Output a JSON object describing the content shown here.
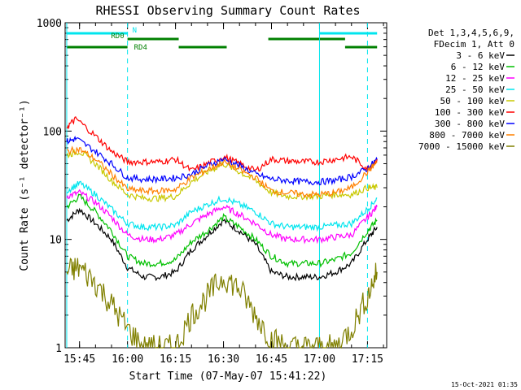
{
  "chart_data": {
    "type": "line",
    "title": "RHESSI Observing Summary Count Rates",
    "xlabel": "Start Time (07-May-07 15:41:22)",
    "ylabel": "Count Rate (s⁻¹ detector⁻¹)",
    "y_scale": "log",
    "ylim": [
      1,
      1000
    ],
    "xlim_minutes": [
      15.7,
      17.3
    ],
    "x_ticks": [
      "15:45",
      "16:00",
      "16:15",
      "16:30",
      "16:45",
      "17:00",
      "17:15"
    ],
    "y_ticks": [
      "1",
      "10",
      "100",
      "1000"
    ],
    "legend_placement": "top-right outside",
    "legend_header": [
      "Det 1,3,4,5,6,9,",
      "FDecim 1, Att 0"
    ],
    "timestamp": "15-Oct-2021 01:35",
    "flags": [
      {
        "name": "N",
        "color": "#00e5ee",
        "segments": [
          [
            "15:41",
            "16:00"
          ],
          [
            "17:00",
            "17:18"
          ]
        ]
      },
      {
        "name": "RD0",
        "color": "#008000",
        "segments": [
          [
            "16:00",
            "16:16"
          ],
          [
            "16:44",
            "17:08"
          ]
        ]
      },
      {
        "name": "RD4",
        "color": "#008000",
        "segments": [
          [
            "15:41",
            "16:00"
          ],
          [
            "16:16",
            "16:31"
          ],
          [
            "17:08",
            "17:18"
          ]
        ]
      }
    ],
    "vlines": [
      {
        "time": "16:00",
        "style": "dashed",
        "color": "#00e5ee"
      },
      {
        "time": "17:00",
        "style": "solid",
        "color": "#00e5ee"
      },
      {
        "time": "17:15",
        "style": "dashed",
        "color": "#00e5ee"
      },
      {
        "time": "15:41",
        "style": "solid",
        "color": "#00e5ee"
      }
    ],
    "series": [
      {
        "name": "3 - 6 keV",
        "color": "#000000",
        "x": [
          "15:41",
          "15:45",
          "15:50",
          "15:55",
          "16:00",
          "16:05",
          "16:10",
          "16:15",
          "16:20",
          "16:25",
          "16:30",
          "16:35",
          "16:40",
          "16:45",
          "16:50",
          "16:55",
          "17:00",
          "17:05",
          "17:10",
          "17:15",
          "17:18"
        ],
        "values": [
          15,
          19,
          14,
          10,
          5.5,
          4.5,
          4.5,
          5,
          8,
          11,
          15,
          12,
          9,
          5,
          4.5,
          4.5,
          4.5,
          5,
          6,
          10,
          13
        ]
      },
      {
        "name": "6 - 12 keV",
        "color": "#00c000",
        "x": [
          "15:41",
          "15:45",
          "15:50",
          "15:55",
          "16:00",
          "16:05",
          "16:10",
          "16:15",
          "16:20",
          "16:25",
          "16:30",
          "16:35",
          "16:40",
          "16:45",
          "16:50",
          "16:55",
          "17:00",
          "17:05",
          "17:10",
          "17:15",
          "17:18"
        ],
        "values": [
          20,
          25,
          18,
          12,
          7,
          6,
          6,
          6.5,
          9.5,
          12,
          16,
          13,
          10,
          7,
          6,
          6,
          6,
          6.5,
          7.5,
          12,
          15
        ]
      },
      {
        "name": "12 - 25 keV",
        "color": "#ff00ff",
        "x": [
          "15:41",
          "15:45",
          "15:50",
          "15:55",
          "16:00",
          "16:05",
          "16:10",
          "16:15",
          "16:20",
          "16:25",
          "16:30",
          "16:35",
          "16:40",
          "16:45",
          "16:50",
          "16:55",
          "17:00",
          "17:05",
          "17:10",
          "17:15",
          "17:18"
        ],
        "values": [
          25,
          27,
          22,
          16,
          11,
          10,
          10,
          11,
          14,
          17,
          20,
          17,
          14,
          11,
          10,
          10,
          10,
          10.5,
          11,
          16,
          20
        ]
      },
      {
        "name": "25 - 50 keV",
        "color": "#00e5ee",
        "x": [
          "15:41",
          "15:45",
          "15:50",
          "15:55",
          "16:00",
          "16:05",
          "16:10",
          "16:15",
          "16:20",
          "16:25",
          "16:30",
          "16:35",
          "16:40",
          "16:45",
          "16:50",
          "16:55",
          "17:00",
          "17:05",
          "17:10",
          "17:15",
          "17:18"
        ],
        "values": [
          28,
          33,
          26,
          19,
          14,
          13,
          13,
          13.5,
          18,
          21,
          24,
          21,
          18,
          14,
          13,
          13,
          13,
          13.5,
          14,
          19,
          24
        ]
      },
      {
        "name": "50 - 100 keV",
        "color": "#c8c800",
        "x": [
          "15:41",
          "15:45",
          "15:50",
          "15:55",
          "16:00",
          "16:05",
          "16:10",
          "16:15",
          "16:20",
          "16:25",
          "16:30",
          "16:35",
          "16:40",
          "16:45",
          "16:50",
          "16:55",
          "17:00",
          "17:05",
          "17:10",
          "17:15",
          "17:18"
        ],
        "values": [
          60,
          65,
          50,
          35,
          26,
          24,
          24,
          25,
          34,
          42,
          50,
          42,
          35,
          27,
          25,
          25,
          25,
          26,
          26,
          30,
          30
        ]
      },
      {
        "name": "100 - 300 keV",
        "color": "#ff0000",
        "x": [
          "15:41",
          "15:44",
          "15:50",
          "15:55",
          "16:00",
          "16:05",
          "16:10",
          "16:15",
          "16:20",
          "16:25",
          "16:30",
          "16:35",
          "16:40",
          "16:45",
          "16:50",
          "16:55",
          "17:00",
          "17:05",
          "17:10",
          "17:15",
          "17:18"
        ],
        "values": [
          110,
          130,
          90,
          65,
          52,
          52,
          52,
          55,
          43,
          50,
          58,
          50,
          43,
          55,
          53,
          52,
          52,
          55,
          58,
          45,
          55
        ]
      },
      {
        "name": "300 - 800 keV",
        "color": "#0000ff",
        "x": [
          "15:41",
          "15:44",
          "15:50",
          "15:55",
          "16:00",
          "16:05",
          "16:10",
          "16:15",
          "16:20",
          "16:25",
          "16:30",
          "16:35",
          "16:40",
          "16:45",
          "16:50",
          "16:55",
          "17:00",
          "17:05",
          "17:10",
          "17:15",
          "17:18"
        ],
        "values": [
          80,
          85,
          65,
          50,
          37,
          36,
          36,
          37,
          40,
          48,
          55,
          48,
          40,
          36,
          35,
          34,
          34,
          35,
          38,
          45,
          55
        ]
      },
      {
        "name": "800 - 7000 keV",
        "color": "#ff8000",
        "x": [
          "15:41",
          "15:45",
          "15:50",
          "15:55",
          "16:00",
          "16:05",
          "16:10",
          "16:15",
          "16:20",
          "16:25",
          "16:30",
          "16:35",
          "16:40",
          "16:45",
          "16:50",
          "16:55",
          "17:00",
          "17:05",
          "17:10",
          "17:15",
          "17:18"
        ],
        "values": [
          65,
          68,
          55,
          40,
          29,
          28,
          28,
          29,
          37,
          44,
          52,
          44,
          37,
          28,
          27,
          26,
          26,
          27,
          30,
          42,
          52
        ]
      },
      {
        "name": "7000 - 15000 keV",
        "color": "#808000",
        "x": [
          "15:41",
          "15:45",
          "15:50",
          "15:55",
          "16:00",
          "16:05",
          "16:10",
          "16:15",
          "16:20",
          "16:25",
          "16:30",
          "16:35",
          "16:40",
          "16:45",
          "16:50",
          "16:55",
          "17:00",
          "17:05",
          "17:10",
          "17:15",
          "17:18"
        ],
        "values": [
          5,
          5.5,
          4,
          2.5,
          1.5,
          1,
          1,
          1,
          2,
          3,
          4.5,
          3.5,
          2,
          1.2,
          1,
          1,
          1,
          1,
          1.5,
          3,
          5
        ]
      }
    ]
  }
}
